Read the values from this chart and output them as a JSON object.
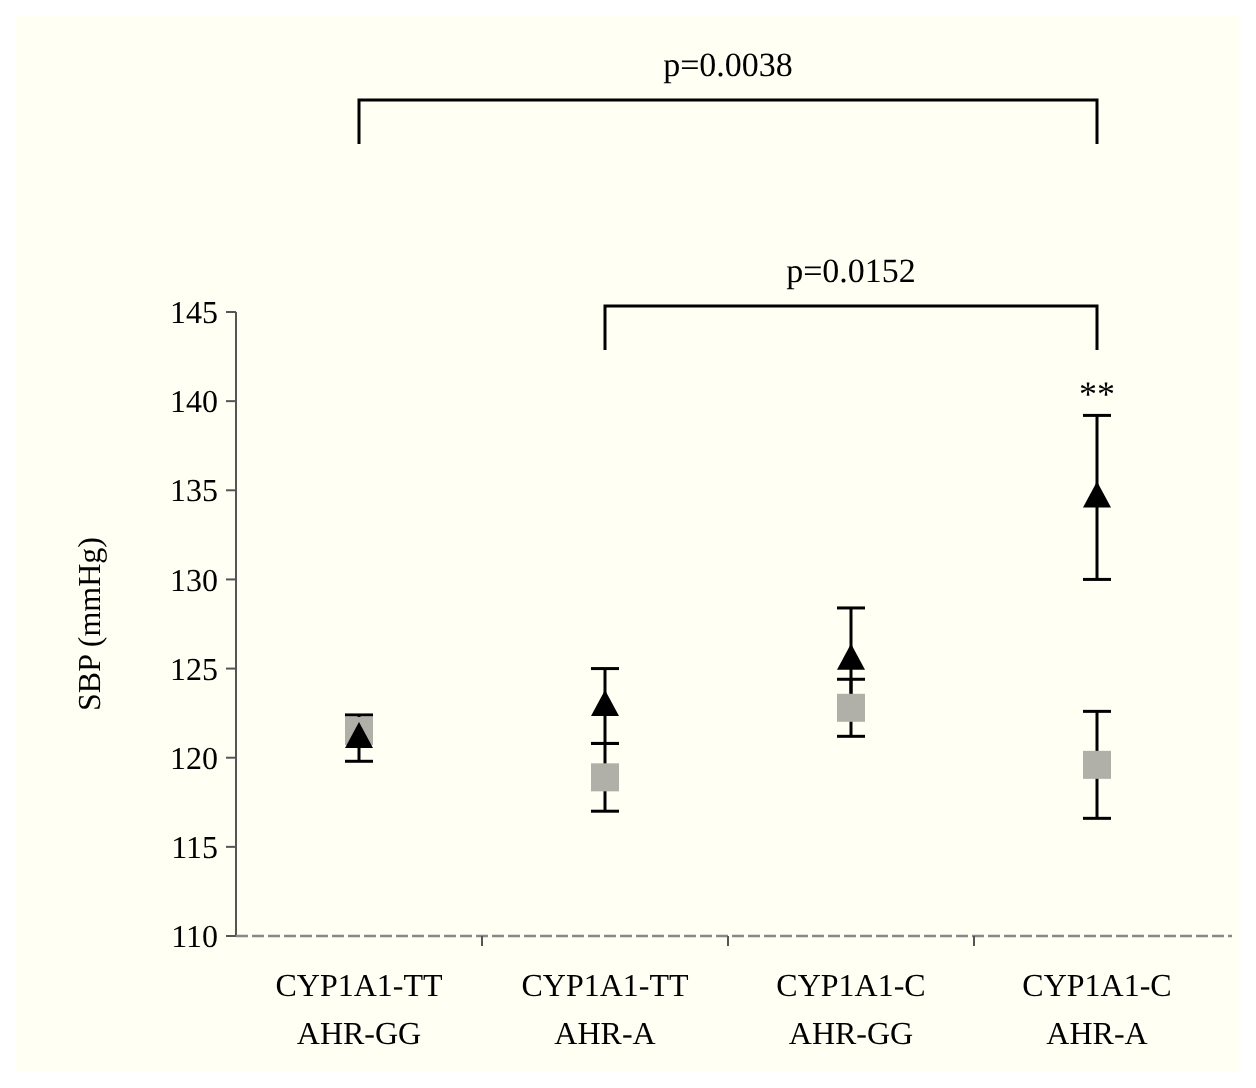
{
  "chart_data": {
    "type": "scatter",
    "ylabel": "SBP (mmHg)",
    "categories": [
      "CYP1A1-TT\nAHR-GG",
      "CYP1A1-TT\nAHR-A",
      "CYP1A1-C\nAHR-GG",
      "CYP1A1-C\nAHR-A"
    ],
    "series": [
      {
        "color": "#000000",
        "marker": "triangle",
        "values": [
          121.1,
          122.9,
          125.5,
          134.6
        ],
        "errors": [
          1.3,
          2.1,
          2.9,
          4.6
        ]
      },
      {
        "color": "#b0b0a8",
        "marker": "square",
        "values": [
          121.5,
          118.9,
          122.8,
          119.6
        ],
        "errors": [
          null,
          1.9,
          1.6,
          3
        ]
      }
    ],
    "ylim": [
      110,
      145
    ],
    "yticks": [
      110,
      115,
      120,
      125,
      130,
      135,
      140,
      145
    ],
    "grid": false,
    "annotations": [
      "p=0.0038",
      "p=0.0152",
      "**"
    ]
  }
}
